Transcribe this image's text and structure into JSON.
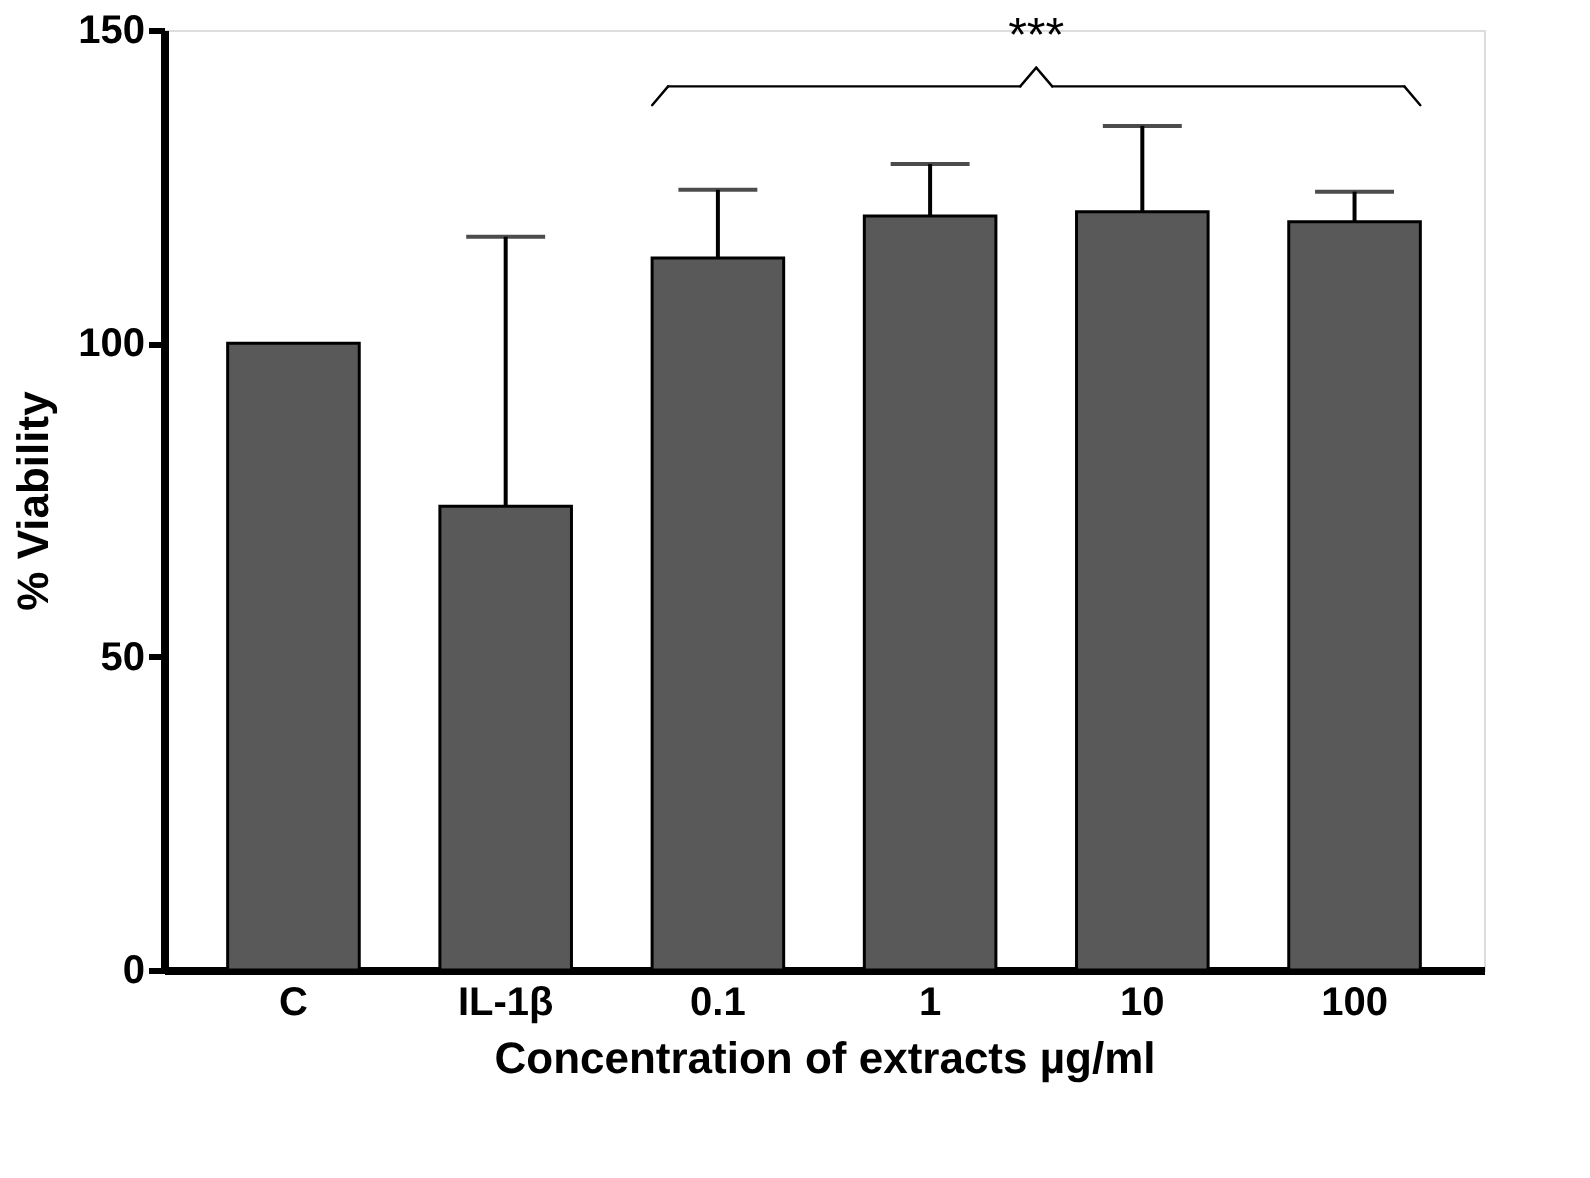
{
  "chart_data": {
    "type": "bar",
    "xlabel": "Concentration of extracts µg/ml",
    "ylabel": "% Viability",
    "categories": [
      "C",
      "IL-1β",
      "0.1",
      "1",
      "10",
      "100"
    ],
    "values": [
      100,
      74,
      113.6,
      120.3,
      121,
      119.4
    ],
    "errors": [
      null,
      [
        74,
        117
      ],
      [
        113.6,
        124.5
      ],
      [
        120.3,
        128.6
      ],
      [
        121,
        134.7
      ],
      [
        119.4,
        124.2
      ]
    ],
    "color": "#595959",
    "ylim": [
      0,
      150
    ],
    "yticks": [
      0,
      50,
      100,
      150
    ],
    "annotations": [
      "***"
    ]
  }
}
